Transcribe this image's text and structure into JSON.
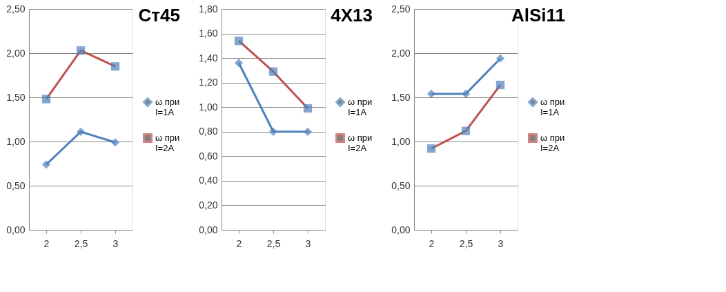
{
  "chart_data": [
    {
      "type": "line",
      "title": "Ст45",
      "categories": [
        "2",
        "2,5",
        "3"
      ],
      "ylim": [
        0,
        2.5
      ],
      "yticks": [
        {
          "value": 0,
          "label": "0,00"
        },
        {
          "value": 0.5,
          "label": "0,50"
        },
        {
          "value": 1,
          "label": "1,00"
        },
        {
          "value": 1.5,
          "label": "1,50"
        },
        {
          "value": 2,
          "label": "2,00"
        },
        {
          "value": 2.5,
          "label": "2,50"
        }
      ],
      "grid": "y",
      "legend": "right",
      "series": [
        {
          "name": "ω при I=1A",
          "color": "#4f81bd",
          "marker": "diamond",
          "values": [
            0.74,
            1.11,
            0.99
          ]
        },
        {
          "name": "ω при I=2A",
          "color": "#c0504d",
          "marker": "square",
          "values": [
            1.48,
            2.03,
            1.85
          ]
        }
      ]
    },
    {
      "type": "line",
      "title": "4X13",
      "categories": [
        "2",
        "2,5",
        "3"
      ],
      "ylim": [
        0,
        1.8
      ],
      "yticks": [
        {
          "value": 0,
          "label": "0,00"
        },
        {
          "value": 0.2,
          "label": "0,20"
        },
        {
          "value": 0.4,
          "label": "0,40"
        },
        {
          "value": 0.6,
          "label": "0,60"
        },
        {
          "value": 0.8,
          "label": "0,80"
        },
        {
          "value": 1,
          "label": "1,00"
        },
        {
          "value": 1.2,
          "label": "1,20"
        },
        {
          "value": 1.4,
          "label": "1,40"
        },
        {
          "value": 1.6,
          "label": "1,60"
        },
        {
          "value": 1.8,
          "label": "1,80"
        }
      ],
      "grid": "y",
      "legend": "right",
      "series": [
        {
          "name": "ω при I=1A",
          "color": "#4f81bd",
          "marker": "diamond",
          "values": [
            1.36,
            0.8,
            0.8
          ]
        },
        {
          "name": "ω при I=2A",
          "color": "#c0504d",
          "marker": "square",
          "values": [
            1.54,
            1.29,
            0.99
          ]
        }
      ]
    },
    {
      "type": "line",
      "title": "AlSi11",
      "categories": [
        "2",
        "2,5",
        "3"
      ],
      "ylim": [
        0,
        2.5
      ],
      "yticks": [
        {
          "value": 0,
          "label": "0,00"
        },
        {
          "value": 0.5,
          "label": "0,50"
        },
        {
          "value": 1,
          "label": "1,00"
        },
        {
          "value": 1.5,
          "label": "1,50"
        },
        {
          "value": 2,
          "label": "2,00"
        },
        {
          "value": 2.5,
          "label": "2,50"
        }
      ],
      "grid": "y",
      "legend": "right",
      "series": [
        {
          "name": "ω при I=1A",
          "color": "#4f81bd",
          "marker": "diamond",
          "values": [
            1.54,
            1.54,
            1.94
          ]
        },
        {
          "name": "ω при I=2A",
          "color": "#c0504d",
          "marker": "square",
          "values": [
            0.92,
            1.12,
            1.64
          ]
        }
      ]
    }
  ]
}
